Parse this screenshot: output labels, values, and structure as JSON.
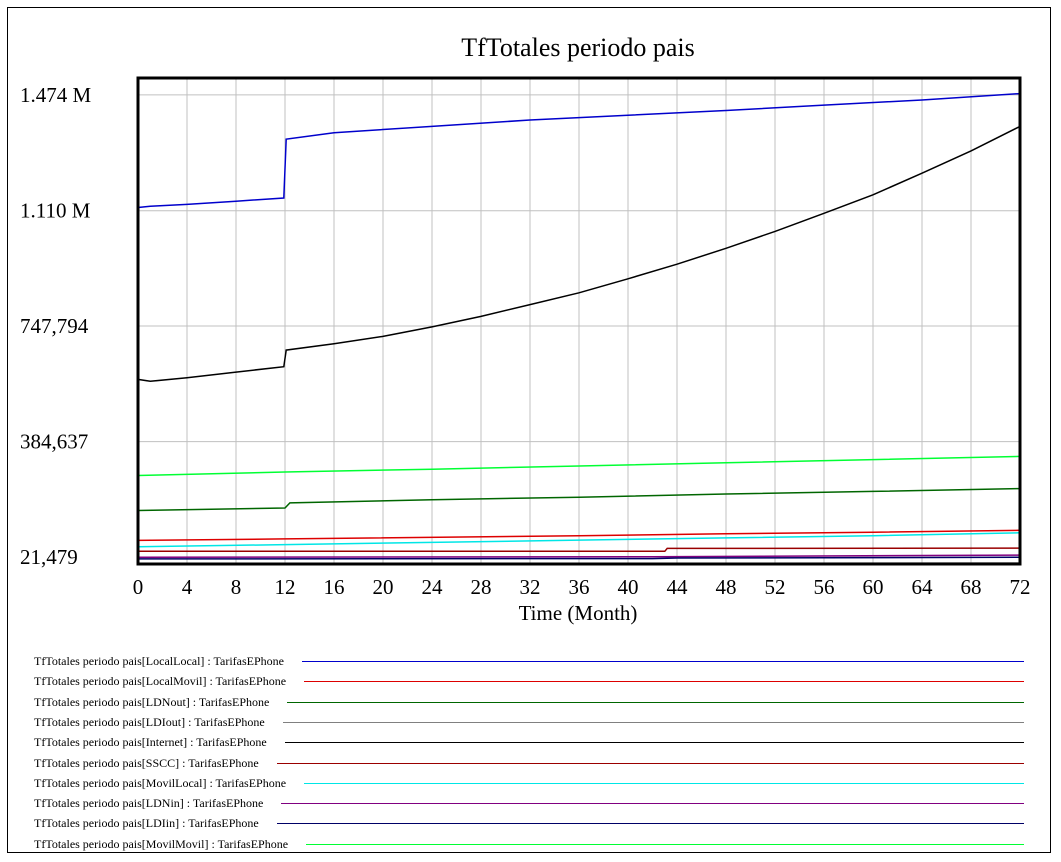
{
  "chart_data": {
    "type": "line",
    "title": "TfTotales periodo pais",
    "xlabel": "Time (Month)",
    "ylabel": "",
    "xlim": [
      0,
      72
    ],
    "ylim": [
      0,
      1527000
    ],
    "x_ticks": [
      0,
      4,
      8,
      12,
      16,
      20,
      24,
      28,
      32,
      36,
      40,
      44,
      48,
      52,
      56,
      60,
      64,
      68,
      72
    ],
    "y_ticks": [
      {
        "value": 21479,
        "label": "21,479"
      },
      {
        "value": 384637,
        "label": "384,637"
      },
      {
        "value": 747794,
        "label": "747,794"
      },
      {
        "value": 1110000,
        "label": "1.110 M"
      },
      {
        "value": 1474000,
        "label": "1.474 M"
      }
    ],
    "grid": true,
    "legend_position": "bottom",
    "series": [
      {
        "name": "TfTotales periodo pais[LocalLocal] : TarifasEPhone",
        "color": "#0000cc",
        "points": [
          [
            0,
            1120000
          ],
          [
            1,
            1124000
          ],
          [
            4,
            1130000
          ],
          [
            8,
            1140000
          ],
          [
            11.9,
            1150000
          ],
          [
            12.1,
            1335000
          ],
          [
            16,
            1355000
          ],
          [
            24,
            1375000
          ],
          [
            32,
            1395000
          ],
          [
            40,
            1410000
          ],
          [
            48,
            1425000
          ],
          [
            56,
            1442000
          ],
          [
            64,
            1458000
          ],
          [
            72,
            1478000
          ]
        ]
      },
      {
        "name": "TfTotales periodo pais[LocalMovil] : TarifasEPhone",
        "color": "#dd0000",
        "points": [
          [
            0,
            74000
          ],
          [
            12,
            79000
          ],
          [
            36,
            89000
          ],
          [
            48,
            95000
          ],
          [
            60,
            100000
          ],
          [
            72,
            106000
          ]
        ]
      },
      {
        "name": "TfTotales periodo pais[LDNout] : TarifasEPhone",
        "color": "#006600",
        "points": [
          [
            0,
            168000
          ],
          [
            12,
            176000
          ],
          [
            12.4,
            192000
          ],
          [
            24,
            202000
          ],
          [
            36,
            210000
          ],
          [
            48,
            220000
          ],
          [
            60,
            228000
          ],
          [
            72,
            237000
          ]
        ]
      },
      {
        "name": "TfTotales periodo pais[LDIout] : TarifasEPhone",
        "color": "#808080",
        "points": [
          [
            0,
            1000
          ],
          [
            72,
            3000
          ]
        ]
      },
      {
        "name": "TfTotales periodo pais[Internet] : TarifasEPhone",
        "color": "#000000",
        "points": [
          [
            0,
            580000
          ],
          [
            1,
            574000
          ],
          [
            4,
            585000
          ],
          [
            8,
            603000
          ],
          [
            11.9,
            620000
          ],
          [
            12.1,
            672000
          ],
          [
            16,
            692000
          ],
          [
            20,
            715000
          ],
          [
            24,
            745000
          ],
          [
            28,
            778000
          ],
          [
            32,
            815000
          ],
          [
            36,
            852000
          ],
          [
            40,
            896000
          ],
          [
            44,
            942000
          ],
          [
            48,
            992000
          ],
          [
            52,
            1045000
          ],
          [
            56,
            1102000
          ],
          [
            60,
            1160000
          ],
          [
            64,
            1228000
          ],
          [
            68,
            1298000
          ],
          [
            72,
            1375000
          ]
        ]
      },
      {
        "name": "TfTotales periodo pais[SSCC] : TarifasEPhone",
        "color": "#990000",
        "points": [
          [
            0,
            40000
          ],
          [
            43,
            40000
          ],
          [
            43.2,
            49000
          ],
          [
            72,
            50000
          ]
        ]
      },
      {
        "name": "TfTotales periodo pais[MovilLocal] : TarifasEPhone",
        "color": "#00e6e6",
        "points": [
          [
            0,
            54000
          ],
          [
            12,
            61000
          ],
          [
            24,
            68000
          ],
          [
            36,
            75000
          ],
          [
            48,
            82000
          ],
          [
            60,
            89000
          ],
          [
            72,
            98000
          ]
        ]
      },
      {
        "name": "TfTotales periodo pais[LDNin] : TarifasEPhone",
        "color": "#800080",
        "points": [
          [
            0,
            21000
          ],
          [
            42,
            23000
          ],
          [
            72,
            28000
          ]
        ]
      },
      {
        "name": "TfTotales periodo pais[LDIin] : TarifasEPhone",
        "color": "#000066",
        "points": [
          [
            0,
            16000
          ],
          [
            42,
            17000
          ],
          [
            44,
            19000
          ],
          [
            72,
            21000
          ]
        ]
      },
      {
        "name": "TfTotales periodo pais[MovilMovil] : TarifasEPhone",
        "color": "#00ff33",
        "points": [
          [
            0,
            278000
          ],
          [
            12,
            289000
          ],
          [
            24,
            298000
          ],
          [
            36,
            308000
          ],
          [
            48,
            318000
          ],
          [
            60,
            328000
          ],
          [
            72,
            338000
          ]
        ]
      }
    ]
  }
}
